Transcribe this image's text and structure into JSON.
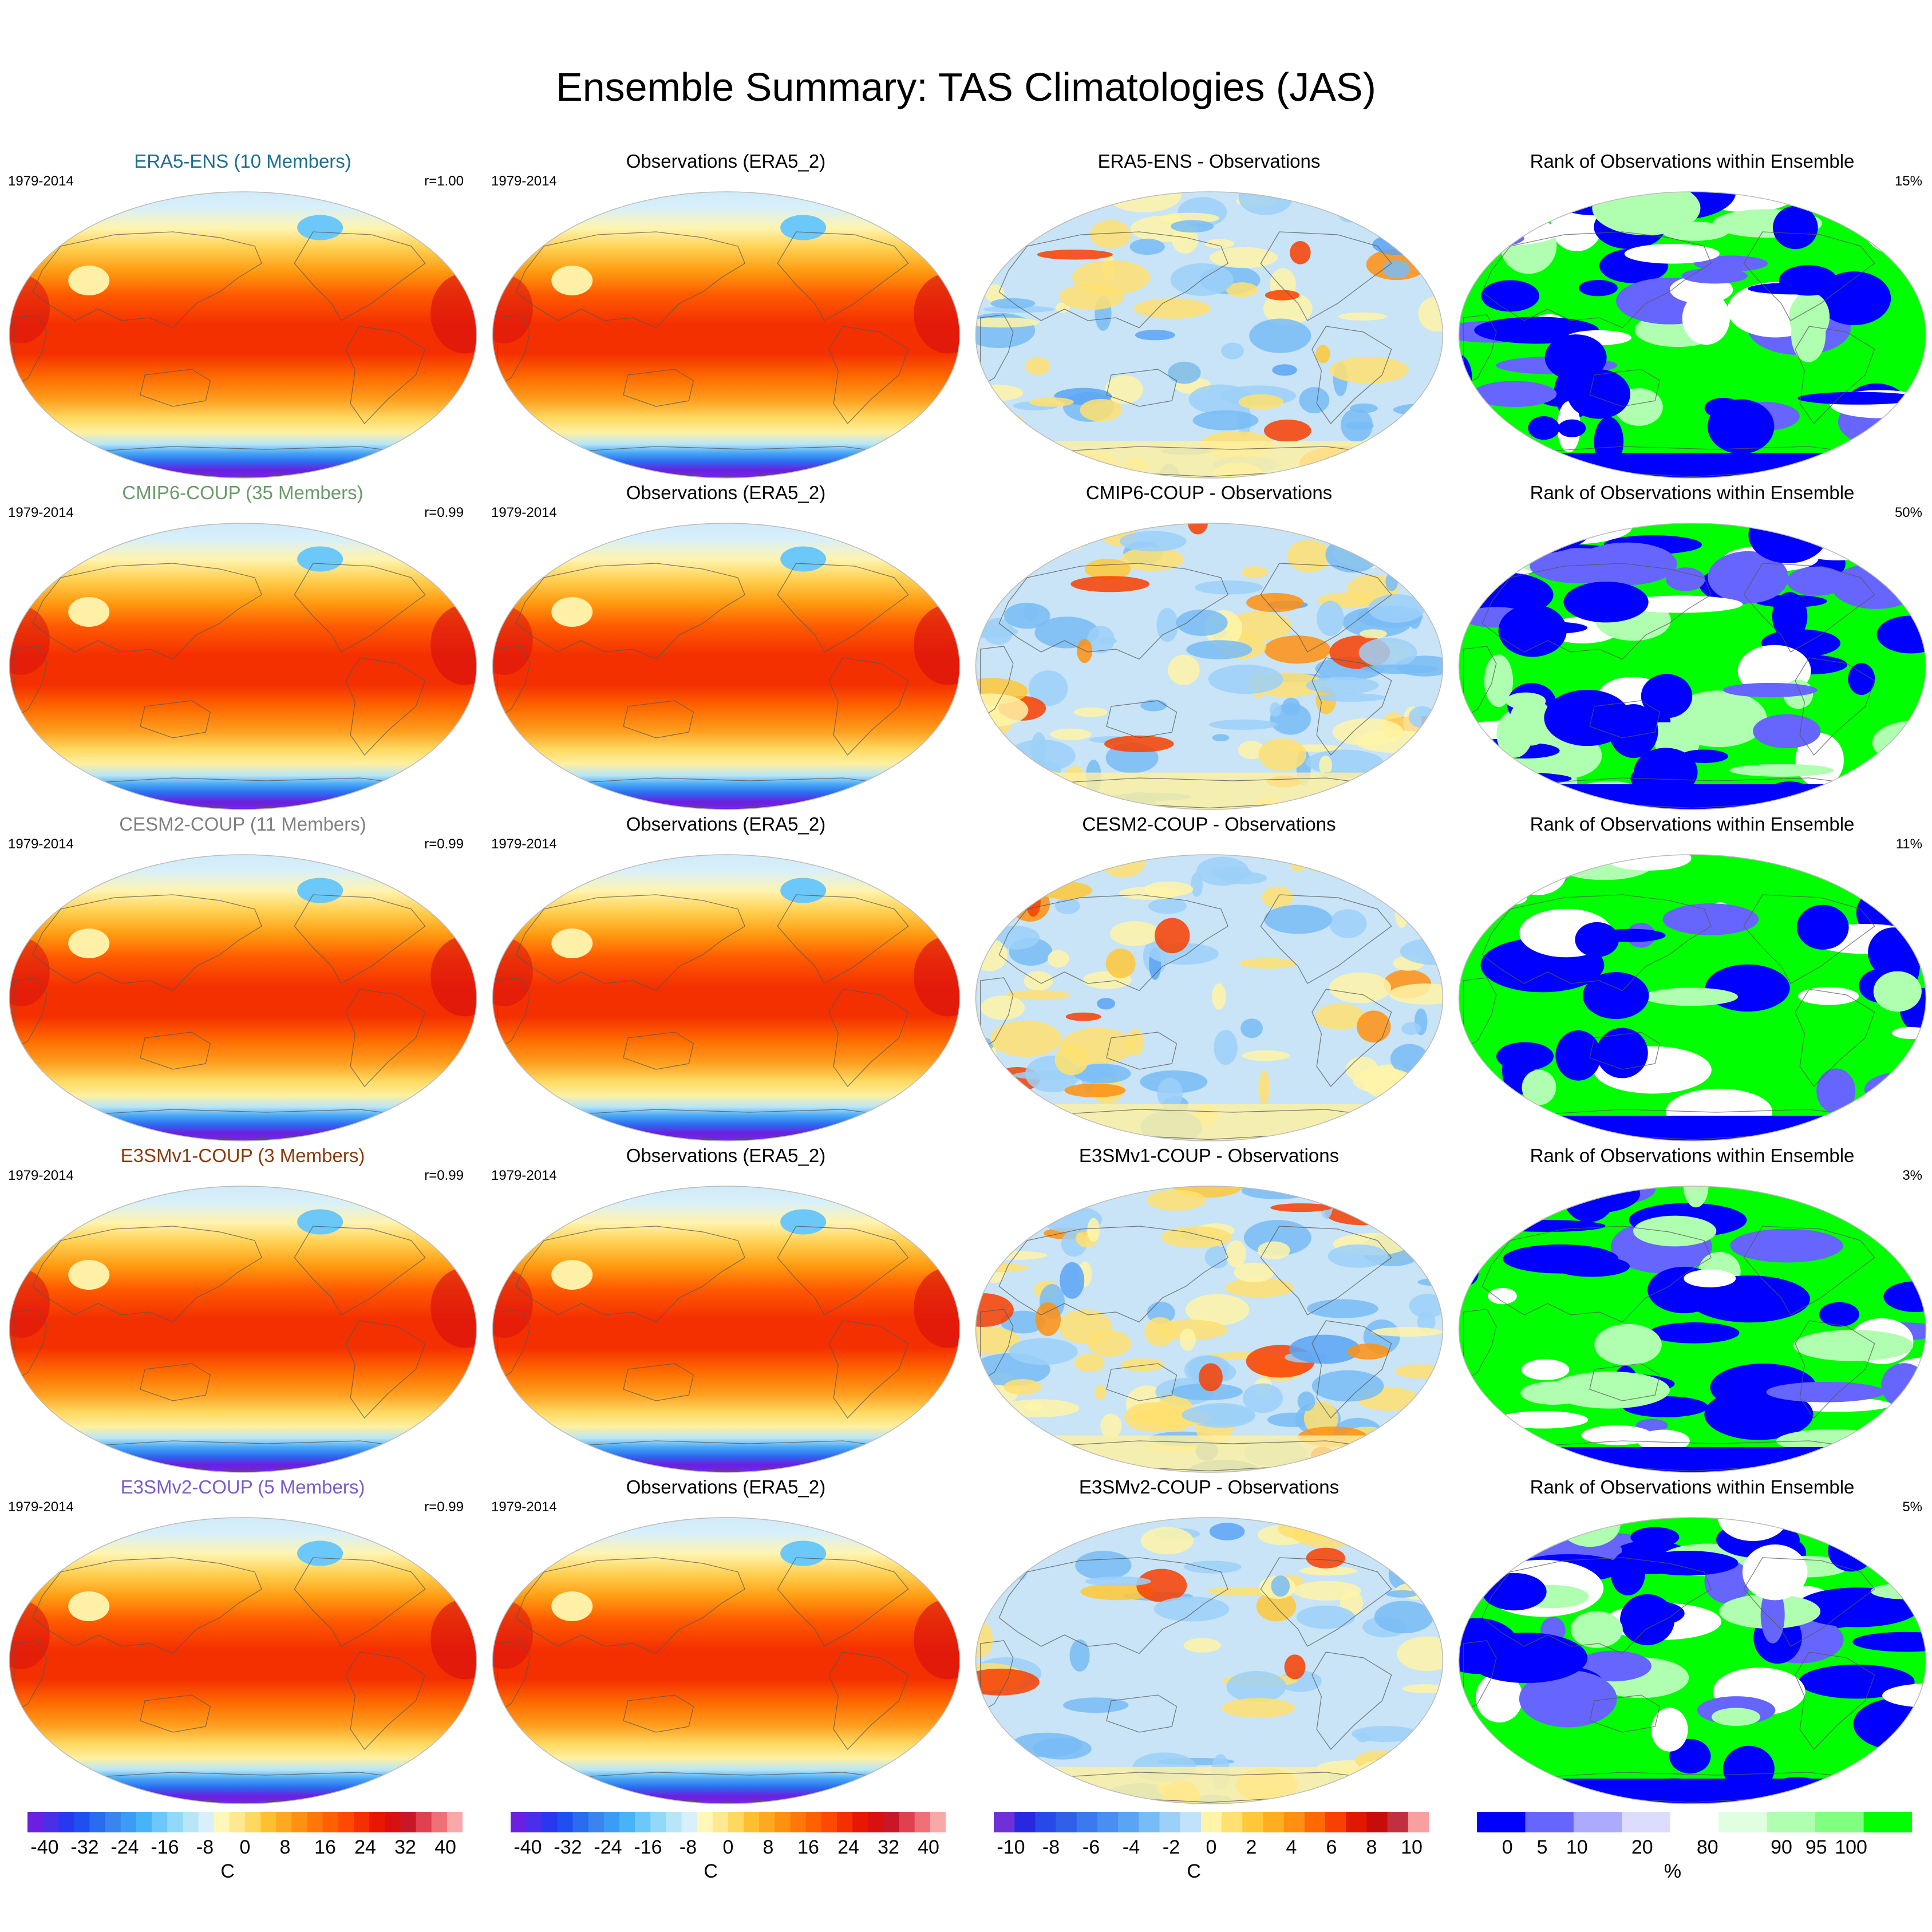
{
  "title": "Ensemble Summary: TAS Climatologies (JAS)",
  "rows": [
    {
      "model_title": "ERA5-ENS (10 Members)",
      "model_color": "#1a6f8f",
      "years": "1979-2014",
      "corr": "r=1.00",
      "obs_title": "Observations (ERA5_2)",
      "diff_title": "ERA5-ENS - Observations",
      "rank_title": "Rank of Observations within Ensemble",
      "rank_pct": "15%"
    },
    {
      "model_title": "CMIP6-COUP (35 Members)",
      "model_color": "#6a9a6a",
      "years": "1979-2014",
      "corr": "r=0.99",
      "obs_title": "Observations (ERA5_2)",
      "diff_title": "CMIP6-COUP - Observations",
      "rank_title": "Rank of Observations within Ensemble",
      "rank_pct": "50%"
    },
    {
      "model_title": "CESM2-COUP (11 Members)",
      "model_color": "#808080",
      "years": "1979-2014",
      "corr": "r=0.99",
      "obs_title": "Observations (ERA5_2)",
      "diff_title": "CESM2-COUP - Observations",
      "rank_title": "Rank of Observations within Ensemble",
      "rank_pct": "11%"
    },
    {
      "model_title": "E3SMv1-COUP (3 Members)",
      "model_color": "#8b3a0e",
      "years": "1979-2014",
      "corr": "r=0.99",
      "obs_title": "Observations (ERA5_2)",
      "diff_title": "E3SMv1-COUP - Observations",
      "rank_title": "Rank of Observations within Ensemble",
      "rank_pct": "3%"
    },
    {
      "model_title": "E3SMv2-COUP (5 Members)",
      "model_color": "#7a5ccc",
      "years": "1979-2014",
      "corr": "r=0.99",
      "obs_title": "Observations (ERA5_2)",
      "diff_title": "E3SMv2-COUP - Observations",
      "rank_title": "Rank of Observations within Ensemble",
      "rank_pct": "5%"
    }
  ],
  "colorbars": [
    {
      "unit": "C",
      "ticks": [
        "-40",
        "-32",
        "-24",
        "-16",
        "-8",
        "0",
        "8",
        "16",
        "24",
        "32",
        "40"
      ],
      "colors": [
        "#6b1fe0",
        "#4a2ee8",
        "#2838f0",
        "#1e50f0",
        "#2a6cf0",
        "#3a84f0",
        "#3a9cf5",
        "#48b4f8",
        "#6cc8f8",
        "#92d8f8",
        "#b8e6f8",
        "#d8f0fa",
        "#fff8b8",
        "#ffe890",
        "#ffd860",
        "#ffc030",
        "#ffa820",
        "#ff9010",
        "#ff7808",
        "#ff6000",
        "#ff4800",
        "#f53000",
        "#e81800",
        "#d81010",
        "#c81828",
        "#e04050",
        "#f07078",
        "#f8a8a8"
      ]
    },
    {
      "unit": "C",
      "ticks": [
        "-40",
        "-32",
        "-24",
        "-16",
        "-8",
        "0",
        "8",
        "16",
        "24",
        "32",
        "40"
      ],
      "colors": [
        "#6b1fe0",
        "#4a2ee8",
        "#2838f0",
        "#1e50f0",
        "#2a6cf0",
        "#3a84f0",
        "#3a9cf5",
        "#48b4f8",
        "#6cc8f8",
        "#92d8f8",
        "#b8e6f8",
        "#d8f0fa",
        "#fff8b8",
        "#ffe890",
        "#ffd860",
        "#ffc030",
        "#ffa820",
        "#ff9010",
        "#ff7808",
        "#ff6000",
        "#ff4800",
        "#f53000",
        "#e81800",
        "#d81010",
        "#c81828",
        "#e04050",
        "#f07078",
        "#f8a8a8"
      ]
    },
    {
      "unit": "C",
      "ticks": [
        "-10",
        "-8",
        "-6",
        "-4",
        "-2",
        "0",
        "2",
        "4",
        "6",
        "8",
        "10"
      ],
      "colors": [
        "#7030d8",
        "#2828e0",
        "#2848e8",
        "#3060e8",
        "#3c78ee",
        "#4a8ef2",
        "#5aa4f4",
        "#78bcf6",
        "#9cd0f8",
        "#c0e2fa",
        "#fff4a8",
        "#ffe070",
        "#ffc838",
        "#ffae20",
        "#ff9010",
        "#ff6a00",
        "#f84000",
        "#e01800",
        "#c80c0c",
        "#c03040",
        "#f8a0a0"
      ]
    },
    {
      "unit": "%",
      "ticks": [
        "0",
        "5",
        "10",
        "20",
        "80",
        "90",
        "95",
        "100"
      ],
      "colors": [
        "#0000ff",
        "#6666ff",
        "#aaaaff",
        "#dcdcff",
        "#ffffff",
        "#e0ffe0",
        "#b0ffb0",
        "#80ff80",
        "#00ff00"
      ]
    }
  ]
}
